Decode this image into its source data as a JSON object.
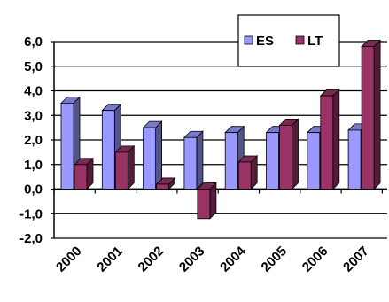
{
  "chart_data": {
    "type": "bar",
    "categories": [
      "2000",
      "2001",
      "2002",
      "2003",
      "2004",
      "2005",
      "2006",
      "2007"
    ],
    "series": [
      {
        "name": "ES",
        "color": "#9999ff",
        "values": [
          3.5,
          3.2,
          2.5,
          2.1,
          2.3,
          2.3,
          2.3,
          2.4
        ]
      },
      {
        "name": "LT",
        "color": "#993366",
        "values": [
          1.0,
          1.5,
          0.2,
          -1.2,
          1.1,
          2.6,
          3.8,
          5.8
        ]
      }
    ],
    "y_ticks": [
      "6,0",
      "5,0",
      "4,0",
      "3,0",
      "2,0",
      "1,0",
      "0,0",
      "-1,0",
      "-2,0"
    ],
    "ylim": [
      -2,
      6
    ],
    "grid": true,
    "legend_position": "top-right",
    "title": "",
    "xlabel": "",
    "ylabel": ""
  }
}
